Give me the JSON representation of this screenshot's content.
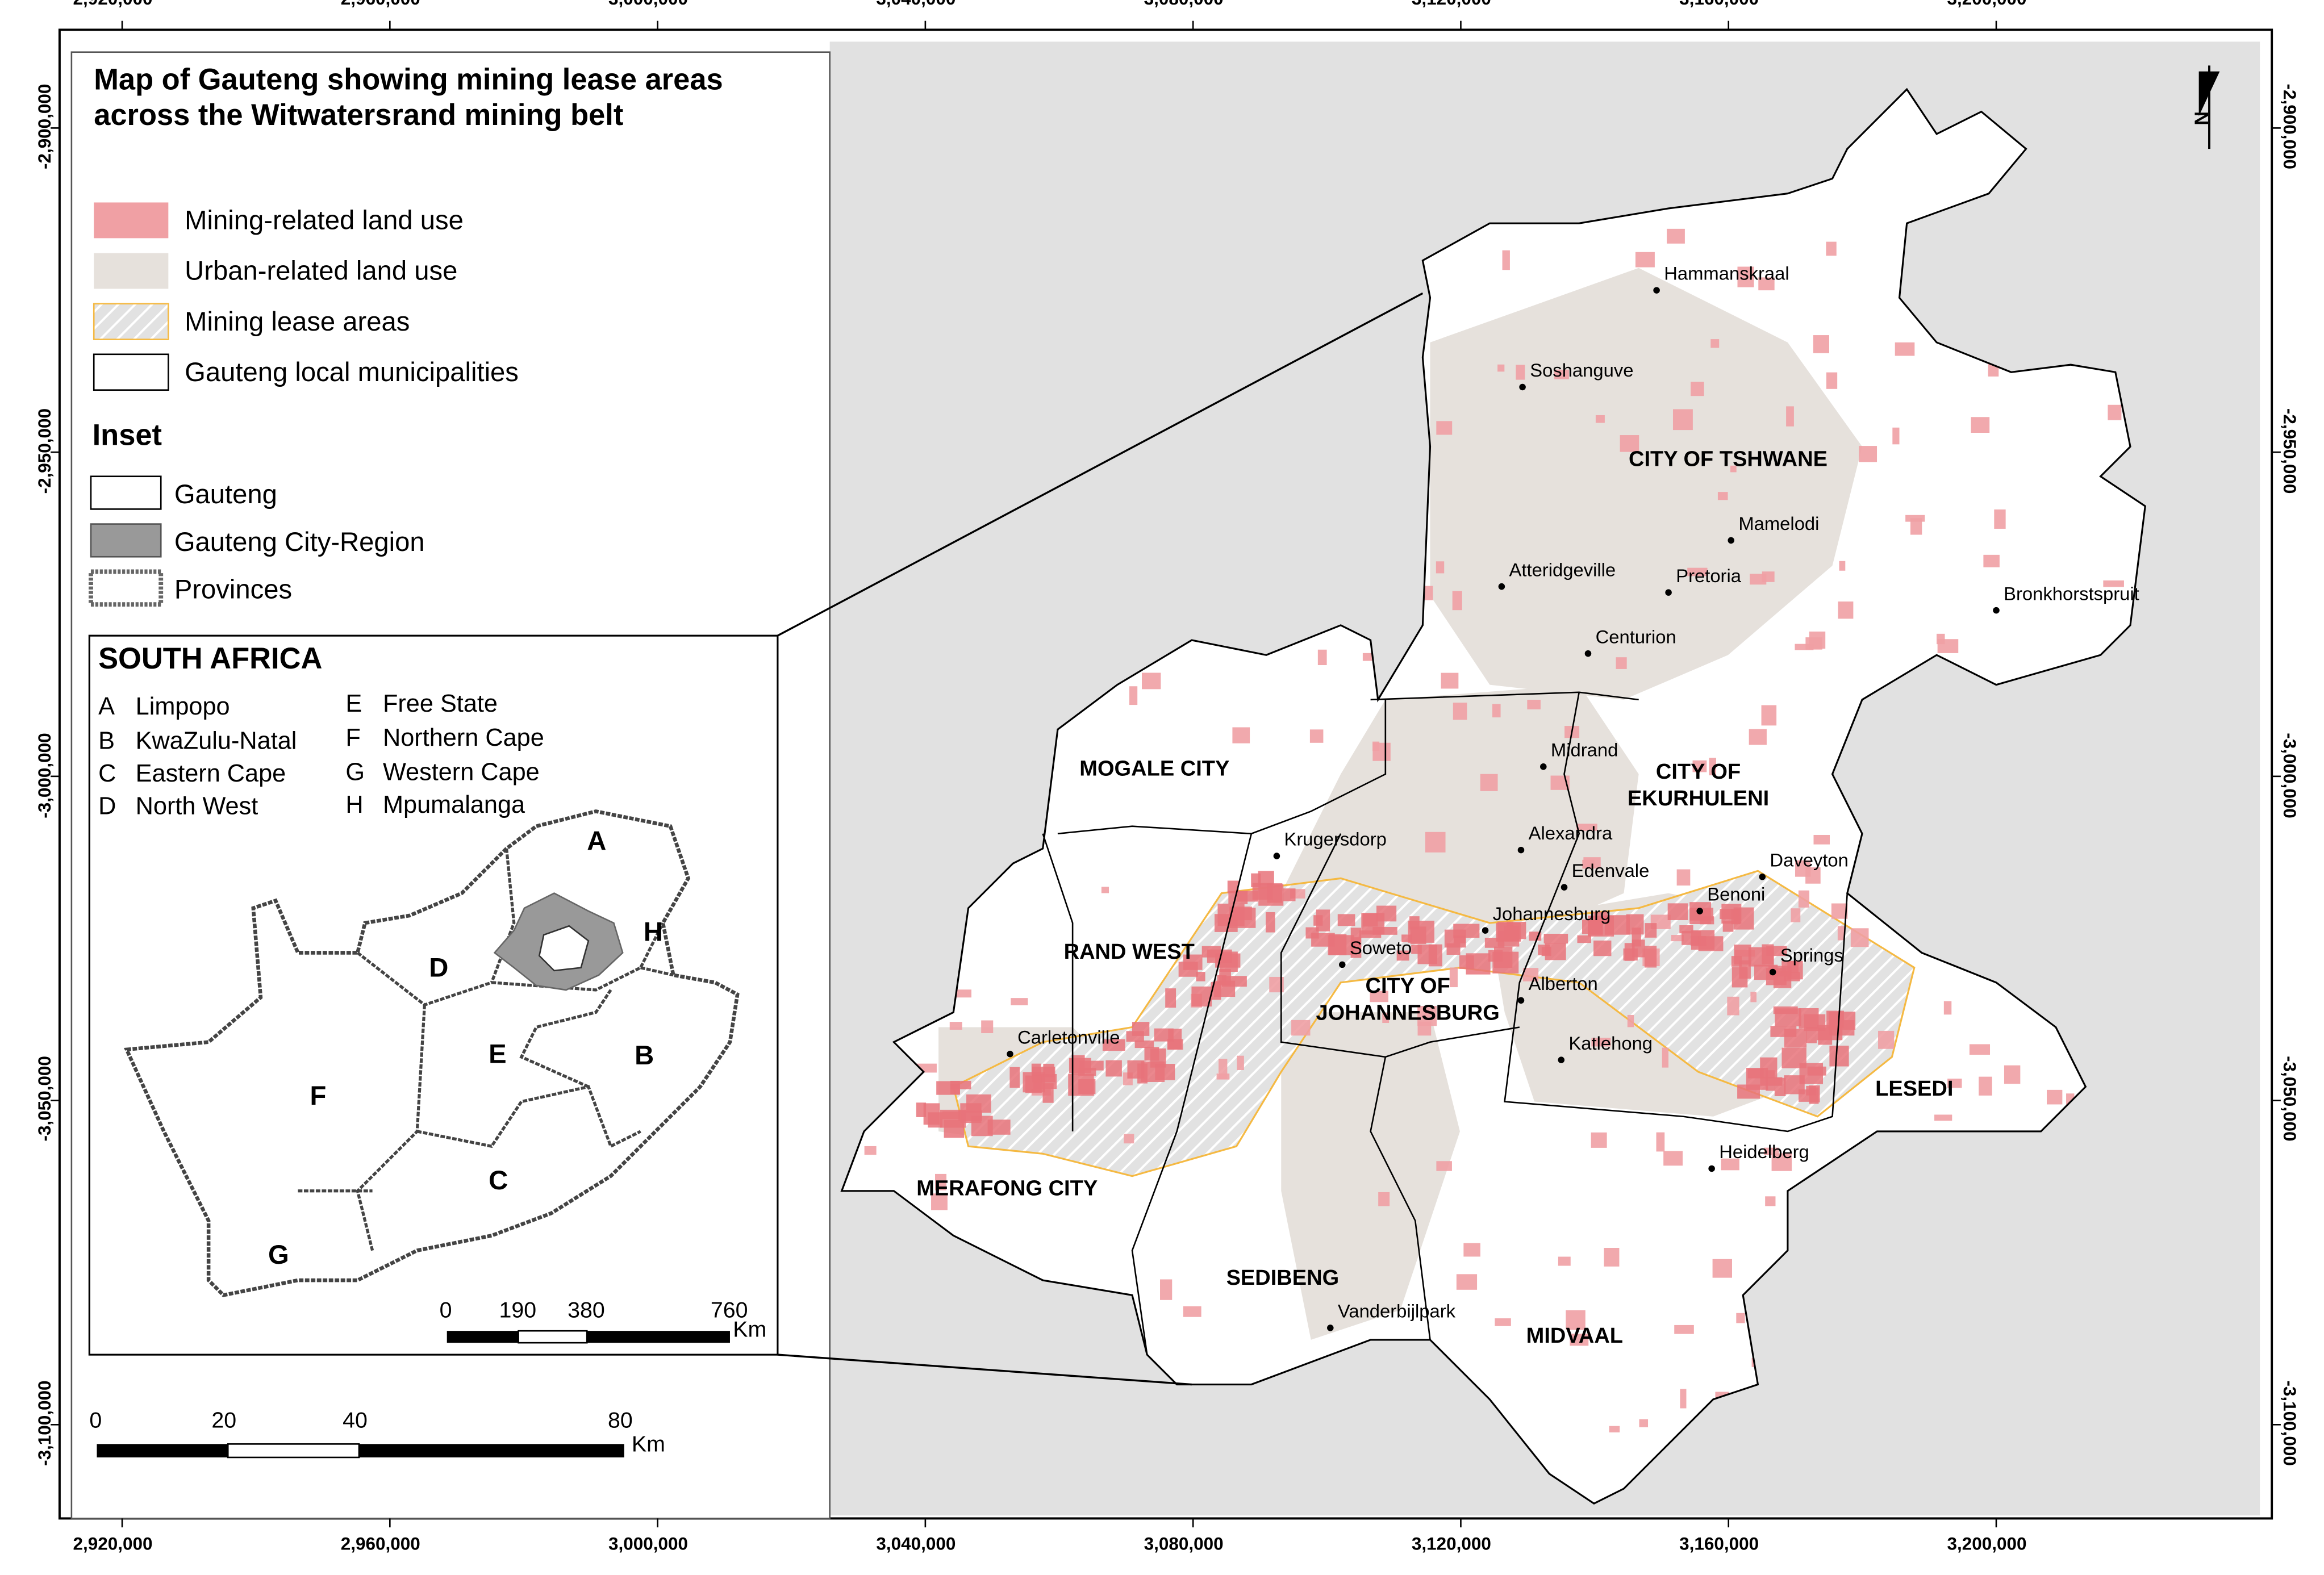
{
  "title": "Map of Gauteng showing mining lease areas across the Witwatersrand mining belt",
  "legend": [
    "Mining-related land use",
    "Urban-related land use",
    "Mining lease areas",
    "Gauteng local municipalities"
  ],
  "inset_legend": {
    "title": "Inset",
    "items": [
      "Gauteng",
      "Gauteng City-Region",
      "Provinces"
    ]
  },
  "inset": {
    "title": "SOUTH AFRICA",
    "provinces": [
      {
        "code": "A",
        "name": "Limpopo"
      },
      {
        "code": "B",
        "name": "KwaZulu-Natal"
      },
      {
        "code": "C",
        "name": "Eastern Cape"
      },
      {
        "code": "D",
        "name": "North West"
      },
      {
        "code": "E",
        "name": "Free State"
      },
      {
        "code": "F",
        "name": "Northern Cape"
      },
      {
        "code": "G",
        "name": "Western Cape"
      },
      {
        "code": "H",
        "name": "Mpumalanga"
      }
    ],
    "scale_bar": {
      "labels": [
        "0",
        "190",
        "380",
        "760"
      ],
      "unit": "Km"
    }
  },
  "scale_bar": {
    "labels": [
      "0",
      "20",
      "40",
      "80"
    ],
    "unit": "Km"
  },
  "x_ticks": [
    {
      "value": 2920000,
      "label": "2,920,000"
    },
    {
      "value": 2960000,
      "label": "2,960,000"
    },
    {
      "value": 3000000,
      "label": "3,000,000"
    },
    {
      "value": 3040000,
      "label": "3,040,000"
    },
    {
      "value": 3080000,
      "label": "3,080,000"
    },
    {
      "value": 3120000,
      "label": "3,120,000"
    },
    {
      "value": 3160000,
      "label": "3,160,000"
    },
    {
      "value": 3200000,
      "label": "3,200,000"
    }
  ],
  "y_ticks": [
    {
      "value": -2900000,
      "label": "-2,900,000"
    },
    {
      "value": -2950000,
      "label": "-2,950,000"
    },
    {
      "value": -3000000,
      "label": "-3,000,000"
    },
    {
      "value": -3050000,
      "label": "-3,050,000"
    },
    {
      "value": -3100000,
      "label": "-3,100,000"
    }
  ],
  "north": "N",
  "municipalities": [
    "CITY OF TSHWANE",
    "MOGALE CITY",
    "CITY OF EKURHULENI",
    "RAND WEST",
    "CITY OF JOHANNESBURG",
    "LESEDI",
    "MERAFONG CITY",
    "SEDIBENG",
    "MIDVAAL"
  ],
  "places": [
    "Hammanskraal",
    "Soshanguve",
    "Mamelodi",
    "Atteridgeville",
    "Pretoria",
    "Bronkhorstspruit",
    "Centurion",
    "Midrand",
    "Alexandra",
    "Krugersdorp",
    "Edenvale",
    "Daveyton",
    "Benoni",
    "Johannesburg",
    "Soweto",
    "Springs",
    "Alberton",
    "Carletonville",
    "Katlehong",
    "Heidelberg",
    "Vanderbijlpark"
  ]
}
